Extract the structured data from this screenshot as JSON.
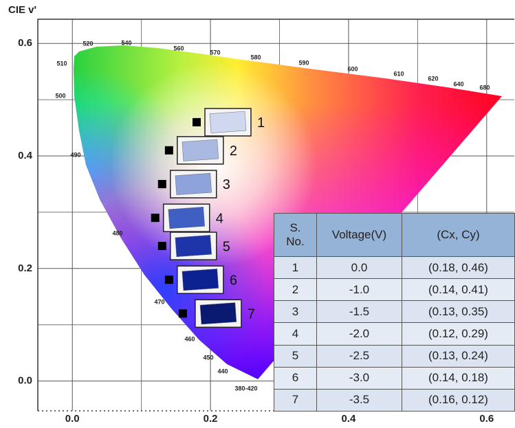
{
  "chart_data": {
    "type": "scatter",
    "y_axis_label": "CIE v'",
    "x": [
      0.18,
      0.14,
      0.13,
      0.12,
      0.13,
      0.14,
      0.16
    ],
    "values": [
      0.46,
      0.41,
      0.35,
      0.29,
      0.24,
      0.18,
      0.12
    ],
    "color": "#000000",
    "point_labels": [
      "1",
      "2",
      "3",
      "4",
      "5",
      "6",
      "7"
    ],
    "xlim": [
      -0.05,
      0.64
    ],
    "ylim": [
      -0.053,
      0.643
    ],
    "xticks": [
      {
        "value": 0,
        "label": "0.0"
      },
      0.2,
      0.4,
      0.6
    ],
    "yticks": [
      {
        "value": 0,
        "label": "0.0"
      },
      0.2,
      0.4,
      0.6
    ],
    "xgrid": [
      0.1,
      0.3,
      0.5
    ],
    "ygrid": [
      0.1,
      0.3,
      0.5
    ],
    "grid": true,
    "wavelength_labels": [
      "380-420",
      "440",
      "450",
      "460",
      "470",
      "480",
      "490",
      "500",
      "510",
      "520",
      "540",
      "560",
      "570",
      "580",
      "590",
      "600",
      "610",
      "620",
      "640",
      "680"
    ]
  },
  "table": {
    "header": [
      "S. No.",
      "Voltage(V)",
      "(Cx, Cy)"
    ],
    "rows": [
      [
        "1",
        "0.0",
        "(0.18, 0.46)"
      ],
      [
        "2",
        "-1.0",
        "(0.14, 0.41)"
      ],
      [
        "3",
        "-1.5",
        "(0.13, 0.35)"
      ],
      [
        "4",
        "-2.0",
        "(0.12, 0.29)"
      ],
      [
        "5",
        "-2.5",
        "(0.13, 0.24)"
      ],
      [
        "6",
        "-3.0",
        "(0.14, 0.18)"
      ],
      [
        "7",
        "-3.5",
        "(0.16, 0.12)"
      ]
    ]
  }
}
